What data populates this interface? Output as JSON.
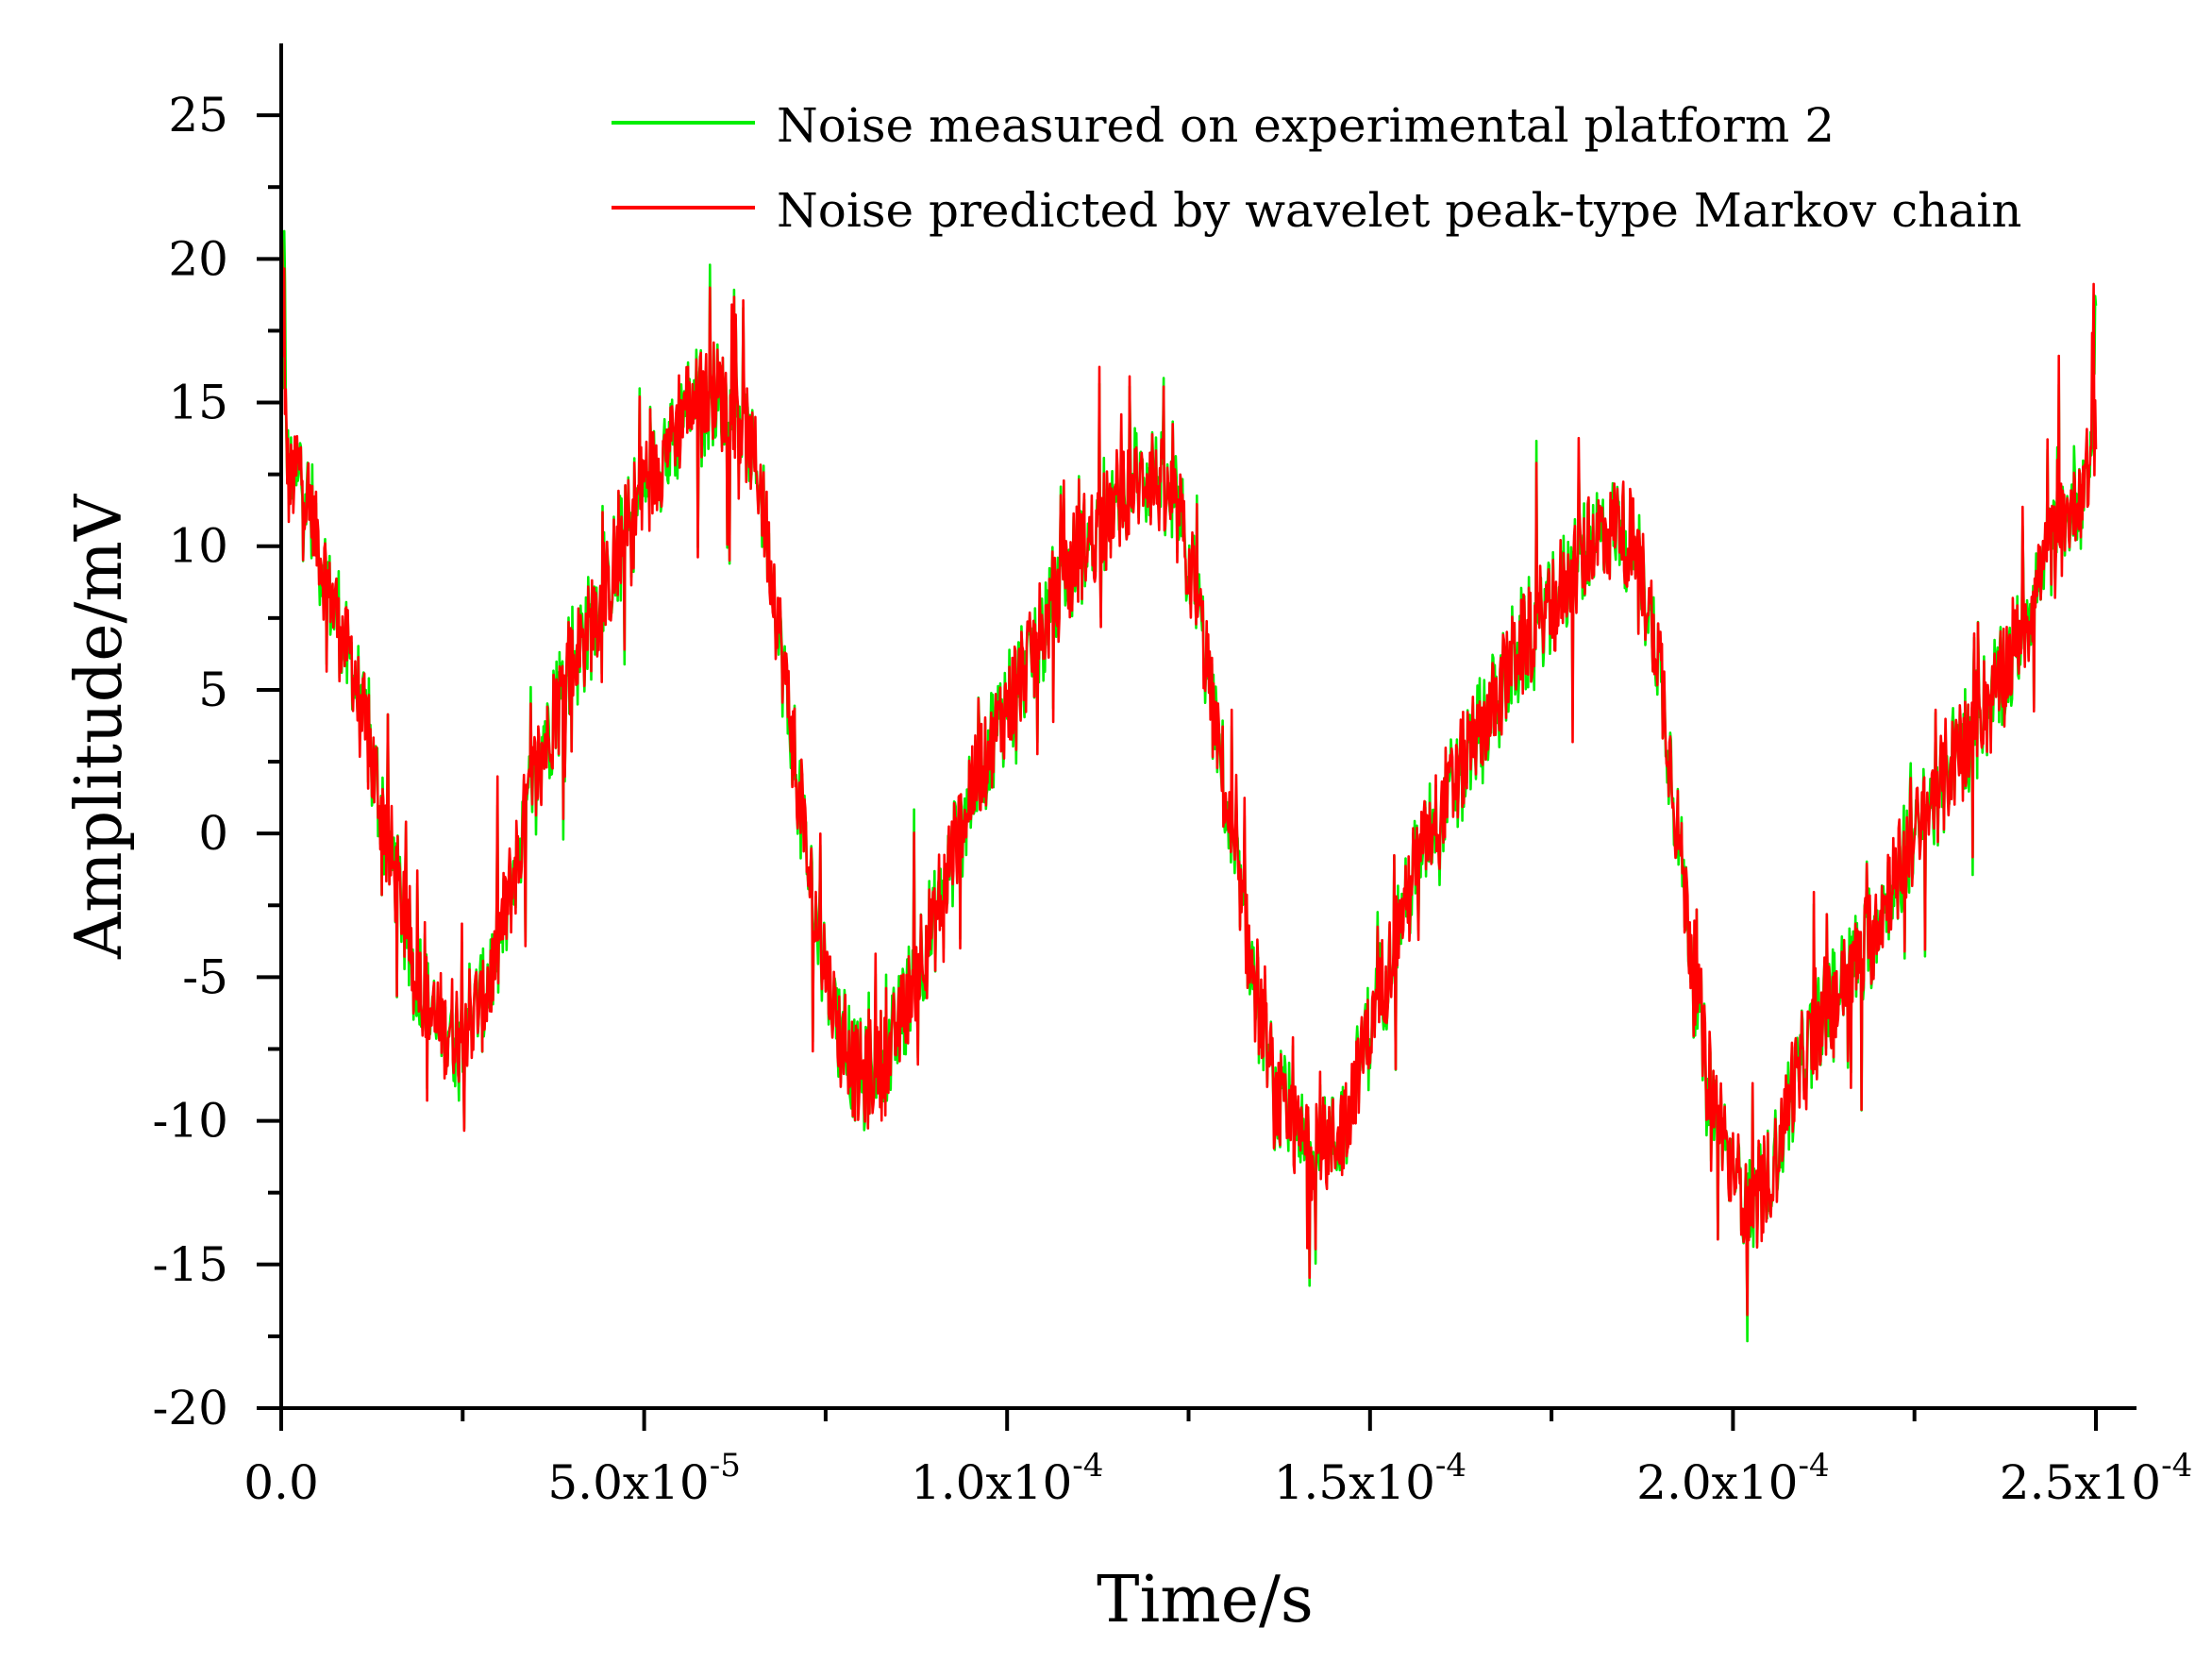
{
  "chart_data": {
    "type": "line",
    "title": "",
    "xlabel": "Time/s",
    "ylabel": "Amplitude/mV",
    "xlim": [
      0,
      0.00025
    ],
    "ylim": [
      -20,
      27.5
    ],
    "grid": false,
    "legend_position": "top-right",
    "x_ticks": [
      {
        "value": 0,
        "mantissa": "0.0",
        "exponent": ""
      },
      {
        "value": 5e-05,
        "mantissa": "5.0x10",
        "exponent": "-5"
      },
      {
        "value": 0.0001,
        "mantissa": "1.0x10",
        "exponent": "-4"
      },
      {
        "value": 0.00015,
        "mantissa": "1.5x10",
        "exponent": "-4"
      },
      {
        "value": 0.0002,
        "mantissa": "2.0x10",
        "exponent": "-4"
      },
      {
        "value": 0.00025,
        "mantissa": "2.5x10",
        "exponent": "-4"
      }
    ],
    "y_ticks": [
      {
        "value": 25,
        "label": "25"
      },
      {
        "value": 20,
        "label": "20"
      },
      {
        "value": 15,
        "label": "15"
      },
      {
        "value": 10,
        "label": "10"
      },
      {
        "value": 5,
        "label": "5"
      },
      {
        "value": 0,
        "label": "0"
      },
      {
        "value": -5,
        "label": "-5"
      },
      {
        "value": -10,
        "label": "-10"
      },
      {
        "value": -15,
        "label": "-15"
      },
      {
        "value": -20,
        "label": "-20"
      }
    ],
    "x_minor_step": 2.5e-05,
    "y_minor_step": 2.5,
    "x_unit_scale": "1e-6 s (microseconds)",
    "series": [
      {
        "name": "Noise measured on experimental platform 2",
        "color": "#00ee00",
        "x_us": [
          0,
          1,
          3,
          6,
          10,
          14,
          18,
          21,
          24,
          28,
          32,
          35,
          40,
          45,
          50,
          53,
          56,
          60,
          63,
          66,
          70,
          73,
          77,
          80,
          84,
          87,
          90,
          95,
          100,
          105,
          110,
          114,
          117,
          120,
          124,
          127,
          131,
          134,
          137,
          140,
          143,
          146,
          149,
          153,
          158,
          164,
          170,
          176,
          180,
          184,
          187,
          190,
          193,
          196,
          199,
          202,
          205,
          208,
          212,
          218,
          224,
          230,
          236,
          240,
          243,
          246,
          249,
          250
        ],
        "y": [
          17.2,
          12.3,
          12.4,
          9.0,
          5.6,
          0.6,
          -4.3,
          -6.6,
          -6.9,
          -5.8,
          -1.6,
          2.1,
          6.0,
          8.5,
          12.2,
          13.4,
          15.1,
          15.2,
          14.7,
          12.1,
          4.3,
          -2.2,
          -7.2,
          -8.6,
          -7.7,
          -5.2,
          -3.0,
          1.6,
          4.4,
          7.2,
          9.9,
          11.0,
          12.1,
          12.5,
          10.7,
          6.9,
          -0.5,
          -4.9,
          -9.3,
          -10.6,
          -11.1,
          -10.4,
          -7.7,
          -4.0,
          0.1,
          2.9,
          6.2,
          8.3,
          10.0,
          11.0,
          9.8,
          5.7,
          -1.3,
          -7.5,
          -11.1,
          -13.1,
          -12.2,
          -9.0,
          -6.5,
          -4.2,
          -0.5,
          2.4,
          4.9,
          7.2,
          9.5,
          11.0,
          12.7,
          14.0
        ]
      },
      {
        "name": "Noise predicted by wavelet peak-type Markov chain",
        "color": "#ff0000",
        "x_us": [
          0,
          1,
          3,
          6,
          10,
          14,
          18,
          21,
          24,
          28,
          32,
          35,
          40,
          45,
          50,
          53,
          56,
          60,
          63,
          66,
          70,
          73,
          77,
          80,
          84,
          87,
          90,
          95,
          100,
          105,
          110,
          114,
          117,
          120,
          124,
          127,
          131,
          134,
          137,
          140,
          143,
          146,
          149,
          153,
          158,
          164,
          170,
          176,
          180,
          184,
          187,
          190,
          193,
          196,
          199,
          202,
          205,
          208,
          212,
          218,
          224,
          230,
          236,
          240,
          243,
          246,
          249,
          250
        ],
        "y": [
          17.2,
          12.3,
          12.4,
          9.0,
          5.6,
          0.6,
          -4.3,
          -6.6,
          -6.9,
          -5.8,
          -1.6,
          2.1,
          6.0,
          8.5,
          12.2,
          13.4,
          15.1,
          15.2,
          14.7,
          12.1,
          4.3,
          -2.2,
          -7.2,
          -8.6,
          -7.7,
          -5.2,
          -3.0,
          1.6,
          4.4,
          7.2,
          9.9,
          11.0,
          12.1,
          12.5,
          10.7,
          6.9,
          -0.5,
          -4.9,
          -9.3,
          -10.6,
          -11.1,
          -10.4,
          -7.7,
          -4.0,
          0.1,
          2.9,
          6.2,
          8.3,
          10.0,
          11.0,
          9.8,
          5.7,
          -1.3,
          -7.5,
          -11.1,
          -13.1,
          -12.2,
          -9.0,
          -6.5,
          -4.2,
          -0.5,
          2.4,
          4.9,
          7.2,
          9.5,
          11.0,
          12.7,
          14.0
        ]
      }
    ]
  }
}
